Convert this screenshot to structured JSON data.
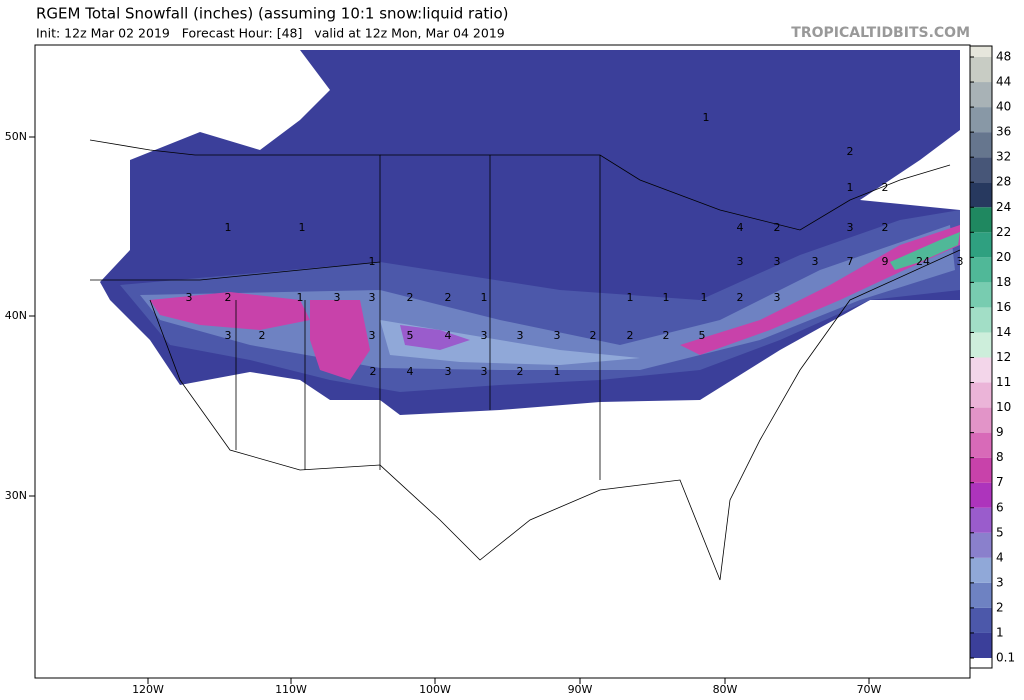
{
  "title": "RGEM Total Snowfall (inches) (assuming 10:1 snow:liquid ratio)",
  "subtitle": "Init: 12z Mar 02 2019   Forecast Hour: [48]   valid at 12z Mon, Mar 04 2019",
  "watermark": "TROPICALTIDBITS.COM",
  "map": {
    "lon_labels": [
      "120W",
      "110W",
      "100W",
      "90W",
      "80W",
      "70W"
    ],
    "lat_labels": [
      "50N",
      "40N",
      "30N"
    ],
    "contour_labels": [
      1,
      1,
      1,
      3,
      2,
      1,
      3,
      3,
      2,
      2,
      1,
      3,
      2,
      3,
      5,
      4,
      3,
      3,
      3,
      2,
      2,
      2,
      5,
      1,
      1,
      1,
      2,
      3,
      2,
      4,
      3,
      3,
      2,
      1,
      1,
      2,
      2,
      1,
      4,
      2,
      3,
      2,
      3,
      3,
      3,
      7,
      9,
      24,
      3
    ]
  },
  "colorbar": {
    "levels": [
      0.1,
      1,
      2,
      3,
      4,
      5,
      6,
      7,
      8,
      9,
      10,
      11,
      12,
      14,
      16,
      18,
      20,
      22,
      24,
      28,
      32,
      36,
      40,
      44,
      48
    ],
    "colors": [
      "#3b3f9a",
      "#4c58aa",
      "#6e82c2",
      "#90a8d8",
      "#8a80cc",
      "#9a5ccc",
      "#ad34bc",
      "#c842aa",
      "#d86ab8",
      "#e294c8",
      "#ebb4d8",
      "#f3d6ea",
      "#cdeedb",
      "#a2dec6",
      "#78ccb0",
      "#50b898",
      "#2fa080",
      "#1f8860",
      "#27395f",
      "#475678",
      "#66768e",
      "#8898a6",
      "#a8b2b6",
      "#c8ccc4",
      "#e6e6dc"
    ]
  }
}
